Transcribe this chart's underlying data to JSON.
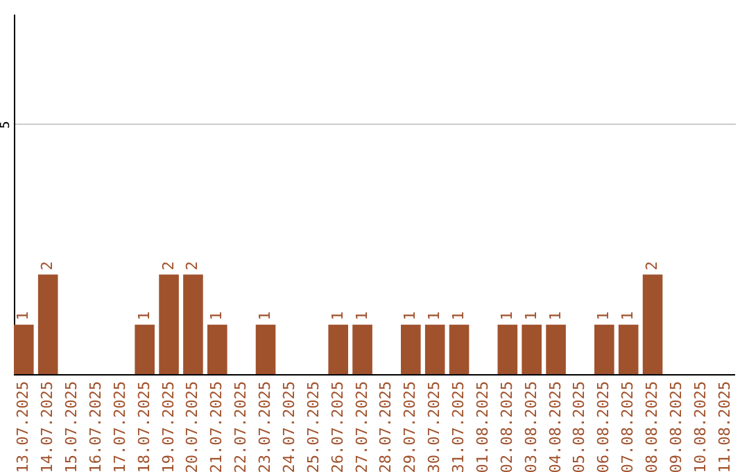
{
  "chart_data": {
    "type": "bar",
    "categories": [
      "13.07.2025",
      "14.07.2025",
      "15.07.2025",
      "16.07.2025",
      "17.07.2025",
      "18.07.2025",
      "19.07.2025",
      "20.07.2025",
      "21.07.2025",
      "22.07.2025",
      "23.07.2025",
      "24.07.2025",
      "25.07.2025",
      "26.07.2025",
      "27.07.2025",
      "28.07.2025",
      "29.07.2025",
      "30.07.2025",
      "31.07.2025",
      "01.08.2025",
      "02.08.2025",
      "03.08.2025",
      "04.08.2025",
      "05.08.2025",
      "06.08.2025",
      "07.08.2025",
      "08.08.2025",
      "09.08.2025",
      "10.08.2025",
      "11.08.2025"
    ],
    "values": [
      1,
      2,
      0,
      0,
      0,
      1,
      2,
      2,
      1,
      0,
      1,
      0,
      0,
      1,
      1,
      0,
      1,
      1,
      1,
      0,
      1,
      1,
      1,
      0,
      1,
      1,
      2,
      0,
      0,
      0
    ],
    "value_labels": [
      "1",
      "2",
      null,
      null,
      null,
      "1",
      "2",
      "2",
      "1",
      null,
      "1",
      null,
      null,
      "1",
      "1",
      null,
      "1",
      "1",
      "1",
      null,
      "1",
      "1",
      "1",
      null,
      "1",
      "1",
      "2",
      null,
      null,
      null
    ],
    "color": "#a0522d",
    "ylim": [
      0,
      7.2
    ],
    "yticks": [
      5
    ],
    "grid": "y"
  }
}
